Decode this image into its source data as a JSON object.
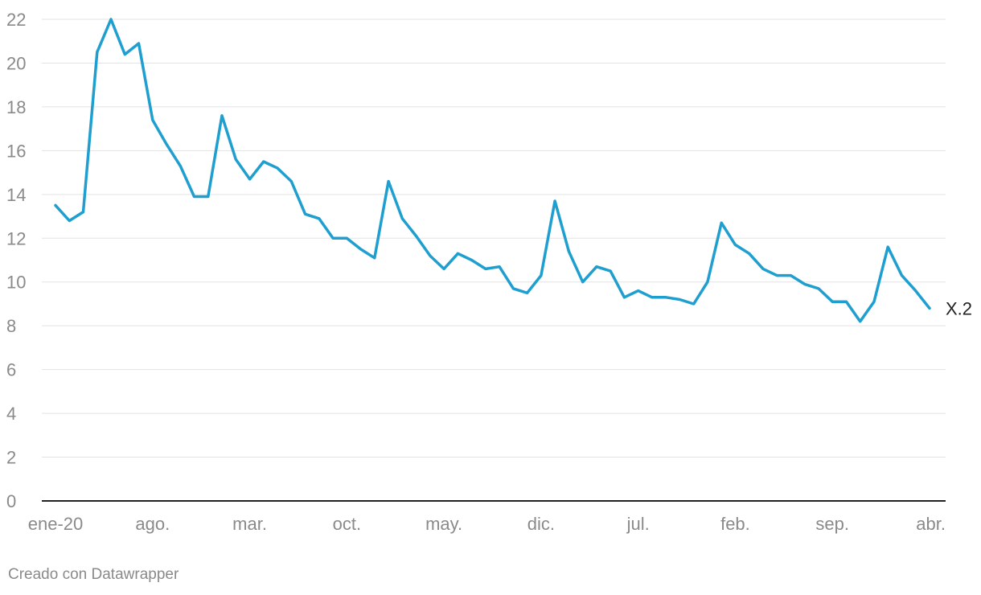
{
  "chart_data": {
    "type": "line",
    "title": "",
    "xlabel": "",
    "ylabel": "",
    "ylim": [
      0,
      22
    ],
    "yticks": [
      0,
      2,
      4,
      6,
      8,
      10,
      12,
      14,
      16,
      18,
      20,
      22
    ],
    "grid": true,
    "x_tick_labels": [
      "ene-20",
      "ago.",
      "mar.",
      "oct.",
      "may.",
      "dic.",
      "jul.",
      "feb.",
      "sep.",
      "abr."
    ],
    "series": [
      {
        "name": "X.2",
        "color": "#1f9fcf",
        "values": [
          13.5,
          12.8,
          13.2,
          20.5,
          22.0,
          20.4,
          20.9,
          17.4,
          16.3,
          15.3,
          13.9,
          13.9,
          17.6,
          15.6,
          14.7,
          15.5,
          15.2,
          14.6,
          13.1,
          12.9,
          12.0,
          12.0,
          11.5,
          11.1,
          14.6,
          12.9,
          12.1,
          11.2,
          10.6,
          11.3,
          11.0,
          10.6,
          10.7,
          9.7,
          9.5,
          10.3,
          13.7,
          11.4,
          10.0,
          10.7,
          10.5,
          9.3,
          9.6,
          9.3,
          9.3,
          9.2,
          9.0,
          10.0,
          12.7,
          11.7,
          11.3,
          10.6,
          10.3,
          10.3,
          9.9,
          9.7,
          9.1,
          9.1,
          8.2,
          9.1,
          11.6,
          10.3,
          9.6,
          8.8
        ]
      }
    ]
  },
  "footer": {
    "credit": "Creado con Datawrapper"
  }
}
